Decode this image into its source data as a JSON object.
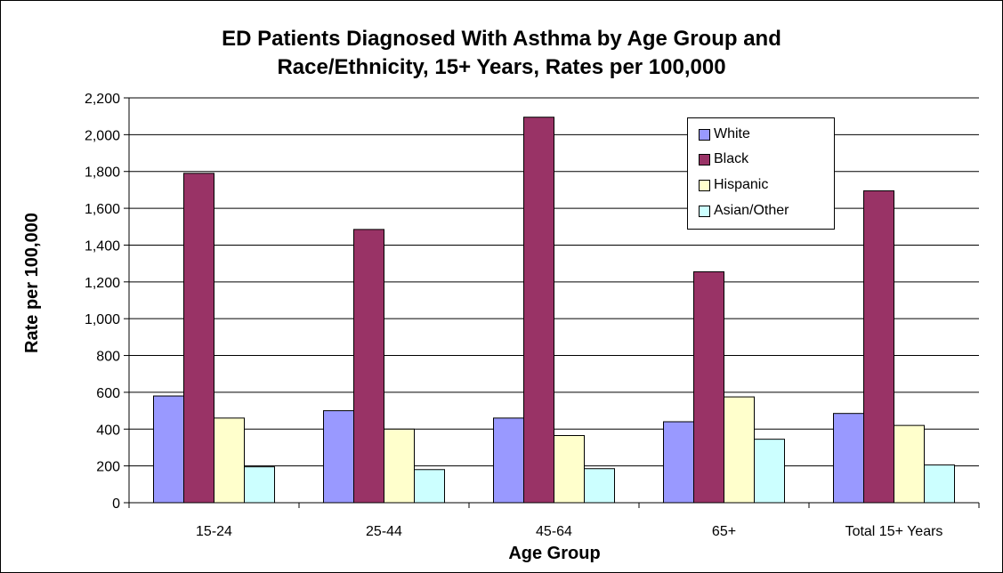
{
  "chart_data": {
    "type": "bar",
    "title_line1": "ED Patients Diagnosed With Asthma by Age Group and",
    "title_line2": "Race/Ethnicity, 15+ Years, Rates per 100,000",
    "xlabel": "Age Group",
    "ylabel": "Rate per 100,000",
    "ylim": [
      0,
      2200
    ],
    "yticks": [
      "0",
      "200",
      "400",
      "600",
      "800",
      "1,000",
      "1,200",
      "1,400",
      "1,600",
      "1,800",
      "2,000",
      "2,200"
    ],
    "categories": [
      "15-24",
      "25-44",
      "45-64",
      "65+",
      "Total 15+ Years"
    ],
    "series": [
      {
        "name": "White",
        "color": "#9999ff",
        "values": [
          580,
          500,
          460,
          440,
          485
        ]
      },
      {
        "name": "Black",
        "color": "#993366",
        "values": [
          1790,
          1485,
          2095,
          1255,
          1695
        ]
      },
      {
        "name": "Hispanic",
        "color": "#ffffcc",
        "values": [
          460,
          400,
          365,
          575,
          420
        ]
      },
      {
        "name": "Asian/Other",
        "color": "#ccffff",
        "values": [
          195,
          180,
          185,
          345,
          205
        ]
      }
    ],
    "grid": true,
    "legend_position": "top-right"
  }
}
